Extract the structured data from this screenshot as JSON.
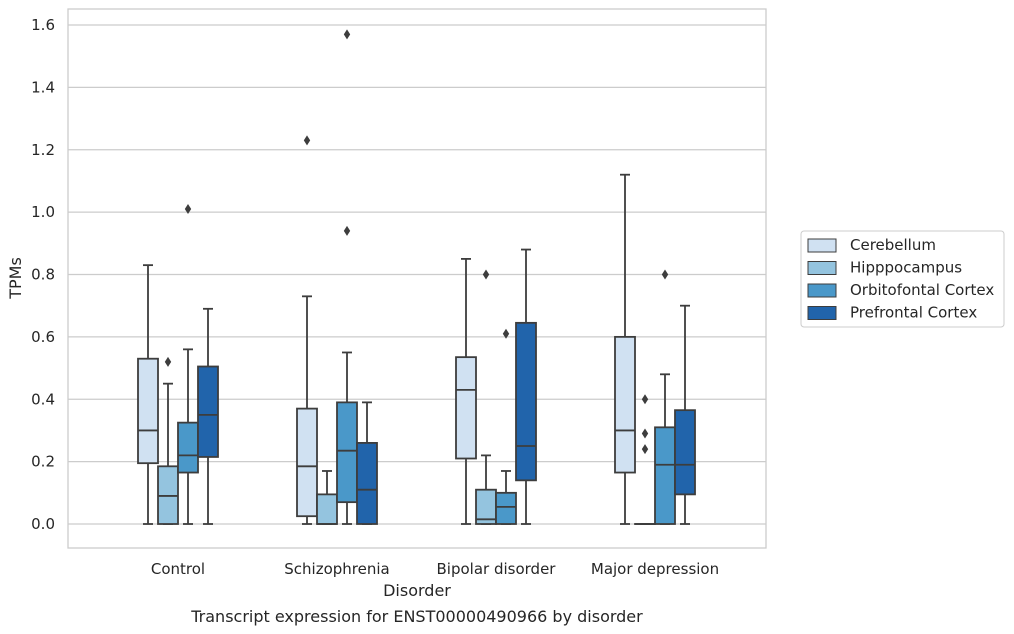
{
  "chart_data": {
    "type": "box",
    "caption": "Transcript expression for ENST00000490966 by disorder",
    "xlabel": "Disorder",
    "ylabel": "TPMs",
    "ylim": [
      -0.075,
      1.65
    ],
    "yticks": [
      0.0,
      0.2,
      0.4,
      0.6,
      0.8,
      1.0,
      1.2,
      1.4,
      1.6
    ],
    "ytick_labels": [
      "0.0",
      "0.2",
      "0.4",
      "0.6",
      "0.8",
      "1.0",
      "1.2",
      "1.4",
      "1.6"
    ],
    "grid": "horizontal",
    "legend_position": "right",
    "categories": [
      "Control",
      "Schizophrenia",
      "Bipolar disorder",
      "Major depression"
    ],
    "series": [
      {
        "name": "Cerebellum",
        "color": "#d0e1f2",
        "boxes": [
          {
            "whislo": 0.0,
            "q1": 0.195,
            "med": 0.3,
            "q3": 0.53,
            "whishi": 0.83,
            "fliers": []
          },
          {
            "whislo": 0.0,
            "q1": 0.025,
            "med": 0.185,
            "q3": 0.37,
            "whishi": 0.73,
            "fliers": [
              1.23
            ]
          },
          {
            "whislo": 0.0,
            "q1": 0.21,
            "med": 0.43,
            "q3": 0.535,
            "whishi": 0.85,
            "fliers": []
          },
          {
            "whislo": 0.0,
            "q1": 0.165,
            "med": 0.3,
            "q3": 0.6,
            "whishi": 1.12,
            "fliers": []
          }
        ]
      },
      {
        "name": "Hipppocampus",
        "color": "#94c4df",
        "boxes": [
          {
            "whislo": 0.0,
            "q1": 0.0,
            "med": 0.09,
            "q3": 0.185,
            "whishi": 0.45,
            "fliers": [
              0.52
            ]
          },
          {
            "whislo": 0.0,
            "q1": 0.0,
            "med": 0.0,
            "q3": 0.095,
            "whishi": 0.17,
            "fliers": []
          },
          {
            "whislo": 0.0,
            "q1": 0.0,
            "med": 0.015,
            "q3": 0.11,
            "whishi": 0.22,
            "fliers": [
              0.8
            ]
          },
          {
            "whislo": 0.0,
            "q1": 0.0,
            "med": 0.0,
            "q3": 0.0,
            "whishi": 0.0,
            "fliers": [
              0.24,
              0.29,
              0.4
            ]
          }
        ]
      },
      {
        "name": "Orbitofontal Cortex",
        "color": "#4a98c9",
        "boxes": [
          {
            "whislo": 0.0,
            "q1": 0.165,
            "med": 0.22,
            "q3": 0.325,
            "whishi": 0.56,
            "fliers": [
              1.01
            ]
          },
          {
            "whislo": 0.0,
            "q1": 0.07,
            "med": 0.235,
            "q3": 0.39,
            "whishi": 0.55,
            "fliers": [
              0.94,
              1.57
            ]
          },
          {
            "whislo": 0.0,
            "q1": 0.0,
            "med": 0.055,
            "q3": 0.1,
            "whishi": 0.17,
            "fliers": [
              0.61
            ]
          },
          {
            "whislo": 0.0,
            "q1": 0.0,
            "med": 0.19,
            "q3": 0.31,
            "whishi": 0.48,
            "fliers": [
              0.8
            ]
          }
        ]
      },
      {
        "name": "Prefrontal Cortex",
        "color": "#2164ab",
        "boxes": [
          {
            "whislo": 0.0,
            "q1": 0.215,
            "med": 0.35,
            "q3": 0.505,
            "whishi": 0.69,
            "fliers": []
          },
          {
            "whislo": 0.0,
            "q1": 0.0,
            "med": 0.11,
            "q3": 0.26,
            "whishi": 0.39,
            "fliers": []
          },
          {
            "whislo": 0.0,
            "q1": 0.14,
            "med": 0.25,
            "q3": 0.645,
            "whishi": 0.88,
            "fliers": []
          },
          {
            "whislo": 0.0,
            "q1": 0.095,
            "med": 0.19,
            "q3": 0.365,
            "whishi": 0.7,
            "fliers": []
          }
        ]
      }
    ]
  }
}
